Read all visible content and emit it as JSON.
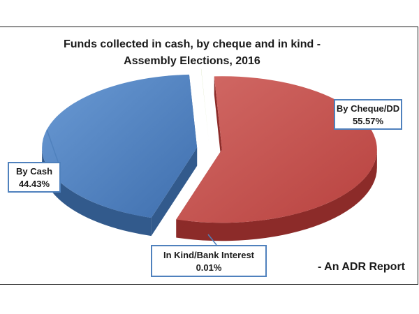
{
  "chart_data": {
    "type": "pie",
    "title_line1": "Funds collected in cash, by cheque and in kind -",
    "title_line2": "Assembly Elections, 2016",
    "slices": [
      {
        "label": "By Cheque/DD",
        "percent_text": "55.57%",
        "value": 55.57,
        "color": "#c0504d"
      },
      {
        "label": "By Cash",
        "percent_text": "44.43%",
        "value": 44.43,
        "color": "#4f81bd"
      },
      {
        "label": "In Kind/Bank Interest",
        "percent_text": "0.01%",
        "value": 0.01,
        "color": "#9bbb59"
      }
    ]
  },
  "source": "- An ADR Report"
}
